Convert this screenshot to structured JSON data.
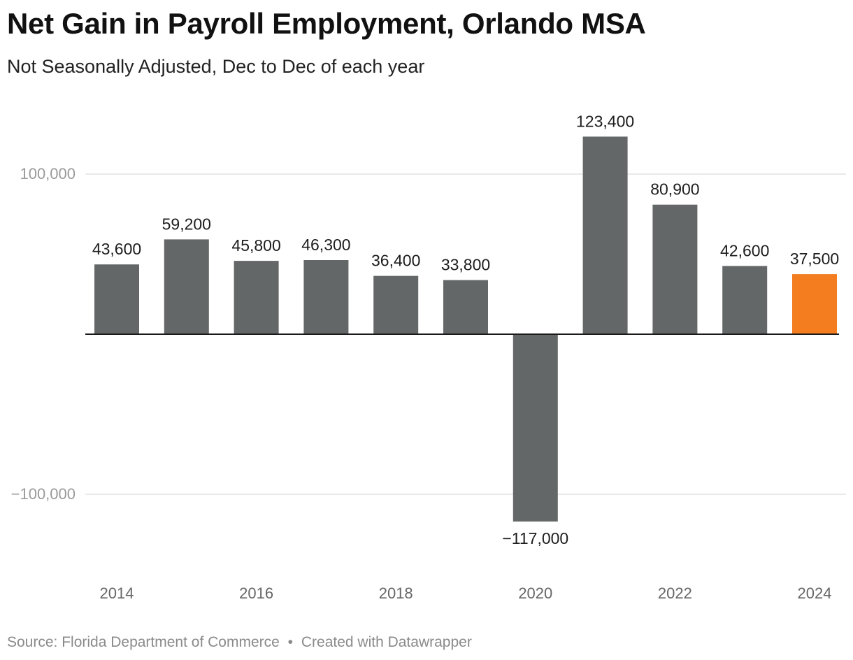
{
  "header": {
    "title": "Net Gain in Payroll Employment, Orlando MSA",
    "subtitle": "Not Seasonally Adjusted, Dec to Dec of each year"
  },
  "footer": {
    "source": "Source: Florida Department of Commerce",
    "separator": "•",
    "credit": "Created with Datawrapper"
  },
  "colors": {
    "bar": "#646768",
    "highlight": "#f47d20",
    "gridline": "#e2e2e2",
    "baseline": "#1a1a1a",
    "tick_label": "#9a9a9a",
    "axis_label": "#666666",
    "value_label": "#1d1d1d"
  },
  "chart_data": {
    "type": "bar",
    "title": "Net Gain in Payroll Employment, Orlando MSA",
    "subtitle": "Not Seasonally Adjusted, Dec to Dec of each year",
    "xlabel": "",
    "ylabel": "",
    "categories": [
      "2014",
      "2015",
      "2016",
      "2017",
      "2018",
      "2019",
      "2020",
      "2021",
      "2022",
      "2023",
      "2024"
    ],
    "values": [
      43600,
      59200,
      45800,
      46300,
      36400,
      33800,
      -117000,
      123400,
      80900,
      42600,
      37500
    ],
    "value_labels": [
      "43,600",
      "59,200",
      "45,800",
      "46,300",
      "36,400",
      "33,800",
      "−117,000",
      "123,400",
      "80,900",
      "42,600",
      "37,500"
    ],
    "highlight_category": "2024",
    "x_tick_labels": [
      {
        "category": "2014",
        "label": "2014"
      },
      {
        "category": "2016",
        "label": "2016"
      },
      {
        "category": "2018",
        "label": "2018"
      },
      {
        "category": "2020",
        "label": "2020"
      },
      {
        "category": "2022",
        "label": "2022"
      },
      {
        "category": "2024",
        "label": "2024"
      }
    ],
    "y_ticks": [
      {
        "value": 100000,
        "label": "100,000"
      },
      {
        "value": -100000,
        "label": "−100,000"
      }
    ],
    "ylim": [
      -145000,
      150000
    ],
    "grid": true,
    "legend": "none"
  }
}
